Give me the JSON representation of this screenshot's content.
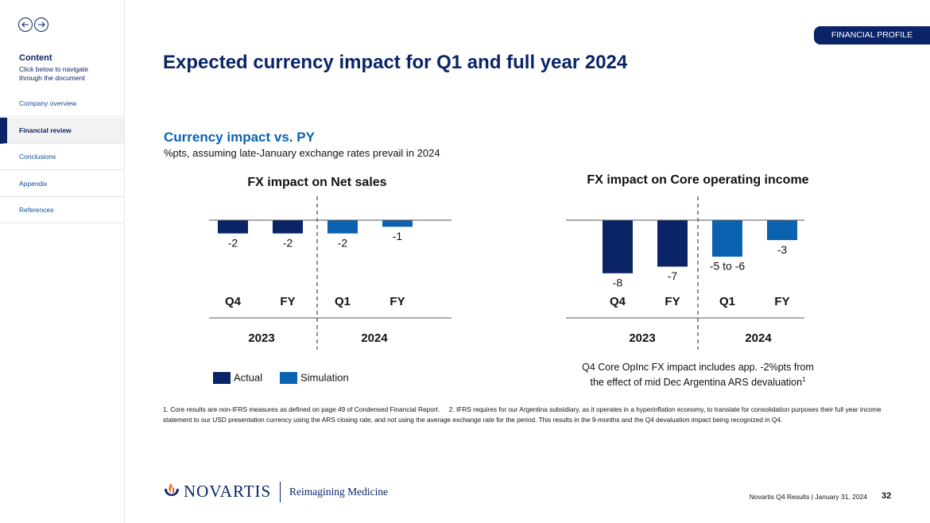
{
  "sidebar": {
    "heading": "Content",
    "subheading": "Click below to navigate through the document",
    "items": [
      "Company overview",
      "Financial review",
      "Conclusions",
      "Appendix",
      "References"
    ],
    "active": 1
  },
  "tag": "FINANCIAL PROFILE",
  "title": "Expected currency impact for Q1 and full year 2024",
  "section_title": "Currency impact vs. PY",
  "section_subtitle": "%pts, assuming late-January exchange rates prevail in 2024",
  "chart_data": [
    {
      "type": "bar",
      "title": "FX impact on Net sales",
      "categories": [
        "Q4",
        "FY",
        "Q1",
        "FY"
      ],
      "groups": [
        "2023",
        "2024"
      ],
      "series": [
        {
          "name": "Actual",
          "color": "#0b2468",
          "values": [
            -2,
            -2,
            null,
            null
          ]
        },
        {
          "name": "Simulation",
          "color": "#0a62b0",
          "values": [
            null,
            null,
            -2,
            -1
          ]
        }
      ]
    },
    {
      "type": "bar",
      "title": "FX impact on Core operating income",
      "categories": [
        "Q4",
        "FY",
        "Q1",
        "FY"
      ],
      "groups": [
        "2023",
        "2024"
      ],
      "series": [
        {
          "color": "#0b2468",
          "values": [
            -8,
            -7,
            null,
            null
          ]
        },
        {
          "color": "#0a62b0",
          "values": [
            null,
            null,
            -5.5,
            -3
          ],
          "value_labels": [
            null,
            null,
            "-5 to -6",
            "-3"
          ]
        }
      ],
      "note": [
        "Q4 Core OpInc FX impact includes app. -2%pts from",
        "the effect of mid Dec Argentina ARS devaluation"
      ],
      "note_ref": "1"
    }
  ],
  "footnotes": [
    "1. Core results are non-IFRS measures as defined on page 49 of Condensed Financial Report.",
    "2. IFRS requires for our Argentina subsidiary, as it operates in a hyperinflation economy, to translate for consolidation purposes their full year income statement to our USD presentation currency using the ARS closing rate, and not using the average exchange rate for the period. This results in the 9-months and the Q4 devaluation impact being recognized in Q4."
  ],
  "logo": {
    "brand": "NOVARTIS",
    "tagline": "Reimagining Medicine"
  },
  "footer": {
    "text": "Novartis Q4 Results | January 31, 2024",
    "page": "32"
  }
}
